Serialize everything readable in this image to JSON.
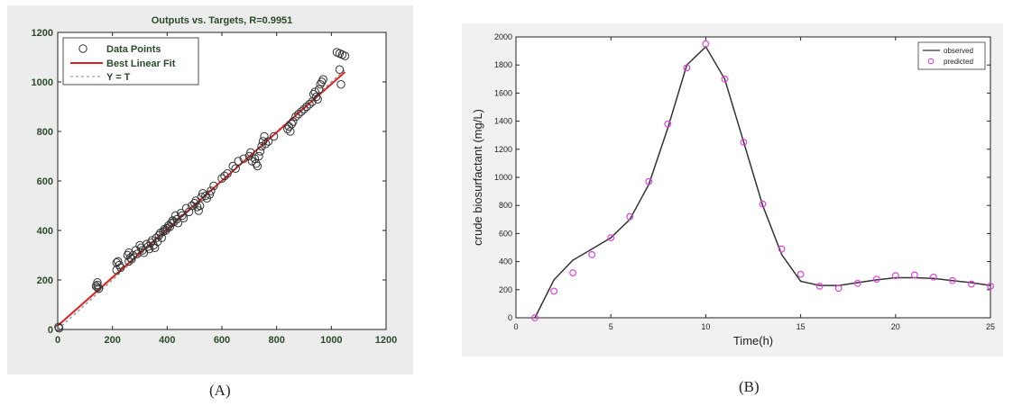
{
  "chart_data": [
    {
      "type": "scatter",
      "title": "Outputs vs. Targets, R=0.9951",
      "xlabel": "",
      "ylabel": "",
      "xlim": [
        0,
        1200
      ],
      "ylim": [
        0,
        1200
      ],
      "xticks": [
        0,
        200,
        400,
        600,
        800,
        1000,
        1200
      ],
      "yticks": [
        0,
        200,
        400,
        600,
        800,
        1000,
        1200
      ],
      "grid": false,
      "legend_position": "top-left",
      "legend": [
        "Data Points",
        "Best Linear Fit",
        "Y = T"
      ],
      "colors": {
        "points": "#333333",
        "fit": "#e02020",
        "identity": "#888888"
      },
      "fit_line": {
        "x": [
          0,
          1050
        ],
        "y": [
          15,
          1040
        ]
      },
      "identity_line": {
        "x": [
          0,
          1050
        ],
        "y": [
          0,
          1050
        ]
      },
      "series": [
        {
          "name": "Data Points",
          "points": [
            [
              5,
              5
            ],
            [
              3,
              10
            ],
            [
              145,
              190
            ],
            [
              145,
              180
            ],
            [
              145,
              170
            ],
            [
              150,
              165
            ],
            [
              140,
              175
            ],
            [
              215,
              270
            ],
            [
              220,
              275
            ],
            [
              225,
              260
            ],
            [
              215,
              240
            ],
            [
              230,
              250
            ],
            [
              255,
              300
            ],
            [
              260,
              310
            ],
            [
              265,
              290
            ],
            [
              260,
              275
            ],
            [
              270,
              285
            ],
            [
              275,
              300
            ],
            [
              285,
              320
            ],
            [
              290,
              305
            ],
            [
              300,
              340
            ],
            [
              305,
              330
            ],
            [
              310,
              320
            ],
            [
              315,
              310
            ],
            [
              325,
              345
            ],
            [
              330,
              335
            ],
            [
              335,
              325
            ],
            [
              340,
              350
            ],
            [
              345,
              360
            ],
            [
              350,
              340
            ],
            [
              355,
              330
            ],
            [
              360,
              370
            ],
            [
              365,
              355
            ],
            [
              370,
              380
            ],
            [
              375,
              390
            ],
            [
              380,
              370
            ],
            [
              385,
              395
            ],
            [
              390,
              405
            ],
            [
              395,
              400
            ],
            [
              400,
              410
            ],
            [
              405,
              420
            ],
            [
              410,
              415
            ],
            [
              415,
              430
            ],
            [
              420,
              440
            ],
            [
              425,
              435
            ],
            [
              430,
              460
            ],
            [
              435,
              445
            ],
            [
              440,
              430
            ],
            [
              450,
              470
            ],
            [
              455,
              460
            ],
            [
              460,
              450
            ],
            [
              470,
              490
            ],
            [
              480,
              475
            ],
            [
              490,
              500
            ],
            [
              500,
              510
            ],
            [
              505,
              520
            ],
            [
              510,
              495
            ],
            [
              515,
              480
            ],
            [
              520,
              500
            ],
            [
              525,
              535
            ],
            [
              530,
              550
            ],
            [
              540,
              540
            ],
            [
              545,
              530
            ],
            [
              555,
              545
            ],
            [
              560,
              560
            ],
            [
              570,
              580
            ],
            [
              600,
              610
            ],
            [
              610,
              620
            ],
            [
              620,
              630
            ],
            [
              640,
              660
            ],
            [
              650,
              650
            ],
            [
              660,
              680
            ],
            [
              680,
              690
            ],
            [
              700,
              700
            ],
            [
              705,
              715
            ],
            [
              710,
              680
            ],
            [
              720,
              690
            ],
            [
              725,
              670
            ],
            [
              730,
              660
            ],
            [
              735,
              700
            ],
            [
              740,
              720
            ],
            [
              745,
              740
            ],
            [
              750,
              760
            ],
            [
              755,
              780
            ],
            [
              760,
              750
            ],
            [
              770,
              760
            ],
            [
              790,
              780
            ],
            [
              840,
              810
            ],
            [
              845,
              820
            ],
            [
              850,
              800
            ],
            [
              855,
              830
            ],
            [
              860,
              840
            ],
            [
              870,
              860
            ],
            [
              880,
              870
            ],
            [
              890,
              880
            ],
            [
              900,
              890
            ],
            [
              910,
              900
            ],
            [
              920,
              910
            ],
            [
              930,
              920
            ],
            [
              935,
              950
            ],
            [
              940,
              960
            ],
            [
              945,
              940
            ],
            [
              950,
              930
            ],
            [
              955,
              970
            ],
            [
              960,
              990
            ],
            [
              965,
              1000
            ],
            [
              970,
              1010
            ],
            [
              1020,
              1120
            ],
            [
              1030,
              1115
            ],
            [
              1040,
              1110
            ],
            [
              1050,
              1105
            ],
            [
              1030,
              1050
            ],
            [
              1035,
              990
            ]
          ]
        }
      ]
    },
    {
      "type": "line",
      "title": "",
      "xlabel": "Time(h)",
      "ylabel": "crude biosurfactant (mg/L)",
      "xlim": [
        0,
        25
      ],
      "ylim": [
        0,
        2000
      ],
      "xticks": [
        0,
        5,
        10,
        15,
        20,
        25
      ],
      "yticks": [
        0,
        200,
        400,
        600,
        800,
        1000,
        1200,
        1400,
        1600,
        1800,
        2000
      ],
      "grid": false,
      "legend_position": "top-right",
      "legend": [
        "observed",
        "predicted"
      ],
      "colors": {
        "observed": "#333333",
        "predicted": "#e040e0"
      },
      "series": [
        {
          "name": "observed",
          "x": [
            1,
            2,
            3,
            4,
            5,
            6,
            7,
            8,
            9,
            10,
            11,
            12,
            13,
            14,
            15,
            16,
            17,
            18,
            19,
            20,
            21,
            22,
            23,
            24,
            25
          ],
          "y": [
            0,
            270,
            410,
            490,
            570,
            700,
            950,
            1350,
            1800,
            1930,
            1700,
            1250,
            800,
            450,
            260,
            230,
            230,
            250,
            270,
            285,
            285,
            280,
            265,
            250,
            230
          ]
        },
        {
          "name": "predicted",
          "x": [
            1,
            2,
            3,
            4,
            5,
            6,
            7,
            8,
            9,
            10,
            11,
            12,
            13,
            14,
            15,
            16,
            17,
            18,
            19,
            20,
            21,
            22,
            23,
            24,
            25
          ],
          "y": [
            0,
            190,
            320,
            450,
            570,
            720,
            970,
            1380,
            1780,
            1950,
            1700,
            1250,
            810,
            490,
            310,
            225,
            210,
            245,
            275,
            300,
            305,
            290,
            265,
            240,
            225
          ]
        }
      ]
    }
  ],
  "captions": {
    "a": "(A)",
    "b": "(B)"
  }
}
